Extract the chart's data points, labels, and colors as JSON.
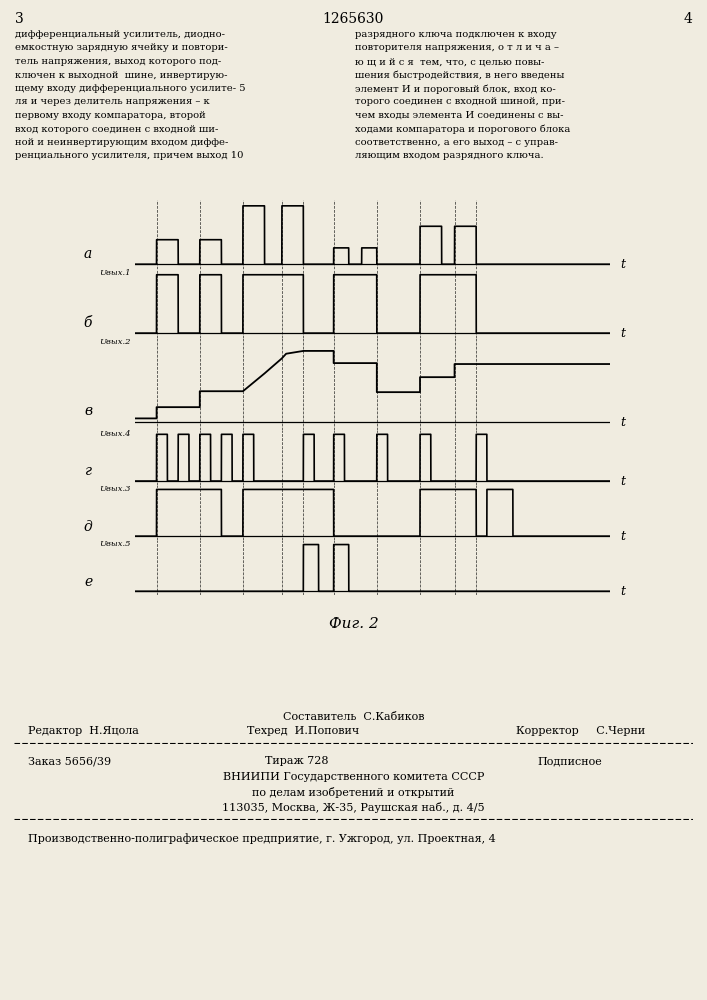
{
  "title_number": "1265630",
  "page_left_num": "3",
  "page_right_num": "4",
  "fig_label": "Фиг. 2",
  "waveform_labels": [
    "а",
    "б",
    "в",
    "г",
    "д",
    "е"
  ],
  "y_labels": [
    "",
    "Uвых.1",
    "Uвых.2",
    "Uвых.4",
    "Uвых.3",
    "Uвых.5"
  ],
  "t_label": "t",
  "left_col_lines": [
    "дифференциальный усилитель, диодно-",
    "емкостную зарядную ячейку и повтори-",
    "тель напряжения, выход которого под-",
    "ключен к выходной  шине, инвертирую-",
    "щему входу дифференциального усилите- 5",
    "ля и через делитель напряжения – к",
    "первому входу компаратора, второй",
    "вход которого соединен с входной ши-",
    "ной и неинвертирующим входом диффе-",
    "ренциального усилителя, причем выход 10"
  ],
  "right_col_lines": [
    "разрядного ключа подключен к входу",
    "повторителя напряжения, о т л и ч а –",
    "ю щ и й с я  тем, что, с целью повы-",
    "шения быстродействия, в него введены",
    "элемент И и пороговый блок, вход ко-",
    "торого соединен с входной шиной, при-",
    "чем входы элемента И соединены с вы-",
    "ходами компаратора и порогового блока",
    "соответственно, а его выход – с управ-",
    "ляющим входом разрядного ключа."
  ],
  "footer_composer": "Составитель  С.Кабиков",
  "footer_editor": "Редактор  Н.Яцола",
  "footer_techred": "Техред  И.Попович",
  "footer_corrector": "Корректор     С.Черни",
  "footer_order": "Заказ 5656/39",
  "footer_print": "Тираж 728",
  "footer_subscription": "Подписное",
  "footer_org1": "ВНИИПИ Государственного комитета СССР",
  "footer_org2": "по делам изобретений и открытий",
  "footer_address": "113035, Москва, Ж-35, Раушская наб., д. 4/5",
  "footer_plant": "Производственно-полиграфическое предприятие, г. Ужгород, ул. Проектная, 4",
  "bg_color": "#f0ece0"
}
